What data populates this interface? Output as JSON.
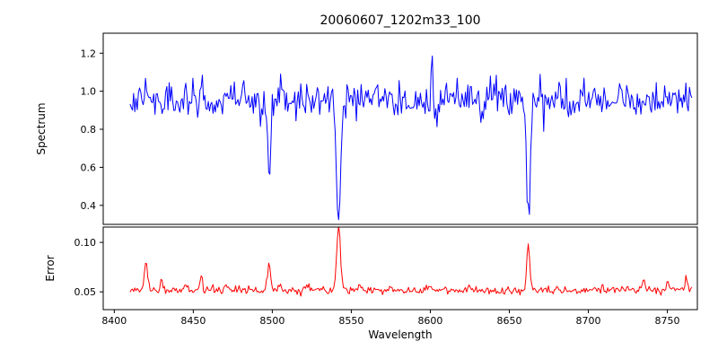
{
  "chart_data": {
    "type": "line",
    "title": "20060607_1202m33_100",
    "xlabel": "Wavelength",
    "xlim": [
      8393,
      8769
    ],
    "x_range": [
      8410,
      8766
    ],
    "step": 0.75,
    "seed": 20060607,
    "x_ticks": [
      {
        "value": 8400,
        "label": "8400"
      },
      {
        "value": 8450,
        "label": "8450"
      },
      {
        "value": 8500,
        "label": "8500"
      },
      {
        "value": 8550,
        "label": "8550"
      },
      {
        "value": 8600,
        "label": "8600"
      },
      {
        "value": 8650,
        "label": "8650"
      },
      {
        "value": 8700,
        "label": "8700"
      },
      {
        "value": 8750,
        "label": "8750"
      }
    ],
    "panels": [
      {
        "name": "spectrum",
        "ylabel": "Spectrum",
        "color": "#0000ff",
        "ylim": [
          0.3,
          1.305
        ],
        "y_ticks": [
          {
            "value": 0.4,
            "label": "0.4"
          },
          {
            "value": 0.6,
            "label": "0.6"
          },
          {
            "value": 0.8,
            "label": "0.8"
          },
          {
            "value": 1.0,
            "label": "1.0"
          },
          {
            "value": 1.2,
            "label": "1.2"
          }
        ],
        "continuum": 0.955,
        "noise_sigma": 0.048,
        "absorption_lines": [
          {
            "center": 8498,
            "depth": 0.4,
            "sigma": 1.0
          },
          {
            "center": 8542,
            "depth": 0.63,
            "sigma": 1.35
          },
          {
            "center": 8662,
            "depth": 0.62,
            "sigma": 1.1
          }
        ],
        "emission_spikes": [
          {
            "center": 8601,
            "height": 0.27,
            "sigma": 0.45
          }
        ]
      },
      {
        "name": "error",
        "ylabel": "Error",
        "color": "#ff0000",
        "ylim": [
          0.032,
          0.1155
        ],
        "y_ticks": [
          {
            "value": 0.05,
            "label": "0.05"
          },
          {
            "value": 0.1,
            "label": "0.10"
          }
        ],
        "baseline": 0.0502,
        "noise_sigma": 0.0017,
        "spike_noise": 0.0016,
        "peaks": [
          {
            "center": 8420,
            "height": 0.03,
            "sigma": 1.0
          },
          {
            "center": 8430,
            "height": 0.01,
            "sigma": 0.8
          },
          {
            "center": 8445,
            "height": 0.008,
            "sigma": 0.8
          },
          {
            "center": 8455,
            "height": 0.014,
            "sigma": 0.9
          },
          {
            "center": 8470,
            "height": 0.007,
            "sigma": 0.8
          },
          {
            "center": 8498,
            "height": 0.026,
            "sigma": 1.0
          },
          {
            "center": 8505,
            "height": 0.008,
            "sigma": 0.8
          },
          {
            "center": 8520,
            "height": 0.006,
            "sigma": 0.8
          },
          {
            "center": 8542,
            "height": 0.066,
            "sigma": 1.2
          },
          {
            "center": 8555,
            "height": 0.007,
            "sigma": 0.8
          },
          {
            "center": 8575,
            "height": 0.005,
            "sigma": 0.8
          },
          {
            "center": 8600,
            "height": 0.006,
            "sigma": 0.7
          },
          {
            "center": 8625,
            "height": 0.005,
            "sigma": 0.7
          },
          {
            "center": 8662,
            "height": 0.046,
            "sigma": 1.0
          },
          {
            "center": 8680,
            "height": 0.005,
            "sigma": 0.7
          },
          {
            "center": 8735,
            "height": 0.01,
            "sigma": 0.9
          },
          {
            "center": 8750,
            "height": 0.009,
            "sigma": 0.8
          },
          {
            "center": 8762,
            "height": 0.012,
            "sigma": 0.8
          }
        ]
      }
    ]
  }
}
